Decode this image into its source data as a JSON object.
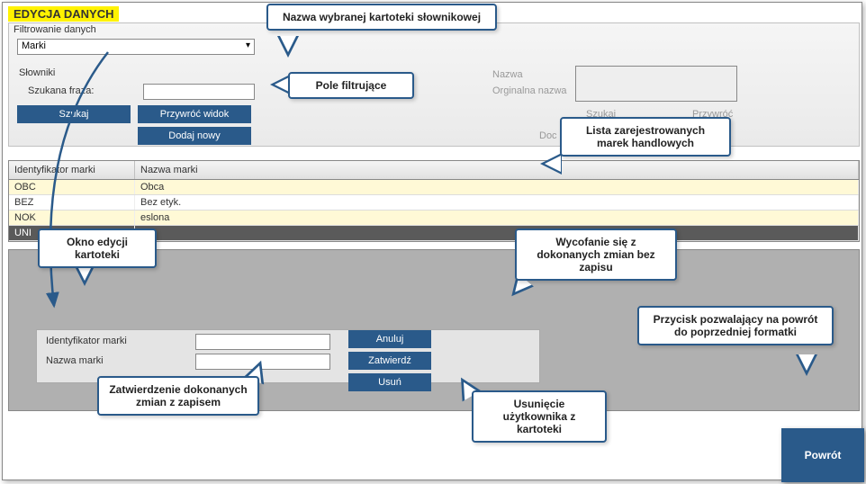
{
  "title": "EDYCJA DANYCH",
  "labels": {
    "filtering": "Filtrowanie danych",
    "dictionaries": "Słowniki",
    "searchPhrase": "Szukana fraza:",
    "nazwa": "Nazwa",
    "orginalnaNazwa": "Orginalna nazwa"
  },
  "dropdownValue": "Marki",
  "buttons": {
    "szukaj": "Szukaj",
    "przywrocWidok": "Przywróć widok",
    "dodajNowy": "Dodaj nowy",
    "szukajR": "Szukaj",
    "przywroc": "Przywróć",
    "doc": "Doc",
    "anuluj": "Anuluj",
    "zatwierdz": "Zatwierdź",
    "usun": "Usuń",
    "powrot": "Powrót"
  },
  "gridHeaders": {
    "id": "Identyfikator marki",
    "name": "Nazwa marki"
  },
  "rows": [
    {
      "id": "OBC",
      "name": "Obca",
      "cls": "yellow"
    },
    {
      "id": "BEZ",
      "name": "Bez etyk.",
      "cls": ""
    },
    {
      "id": "NOK",
      "name": "eslona",
      "cls": "yellow"
    },
    {
      "id": "UNI",
      "name": "",
      "cls": "dark"
    }
  ],
  "form": {
    "idLabel": "Identyfikator marki",
    "nameLabel": "Nazwa marki"
  },
  "callouts": {
    "c1": "Nazwa wybranej kartoteki słownikowej",
    "c2": "Pole filtrujące",
    "c3": "Lista zarejestrowanych marek handlowych",
    "c4": "Okno edycji kartoteki",
    "c5": "Wycofanie się z dokonanych zmian bez zapisu",
    "c6": "Zatwierdzenie dokonanych zmian z zapisem",
    "c7": "Usunięcie użytkownika z kartoteki",
    "c8": "Przycisk pozwalający na powrót do poprzedniej formatki"
  },
  "colors": {
    "accent": "#2a5a8a",
    "highlight": "#fff200",
    "rowHighlight": "#fff9d6"
  }
}
